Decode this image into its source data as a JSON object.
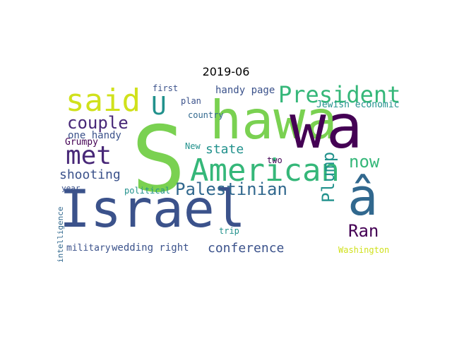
{
  "title": "2019-06",
  "words": [
    {
      "text": "Israel",
      "color": "#3b528b"
    },
    {
      "text": "S",
      "color": "#7ad151"
    },
    {
      "text": "hawa",
      "color": "#7ad151"
    },
    {
      "text": "wa",
      "color": "#440154"
    },
    {
      "text": "â",
      "color": "#31688e"
    },
    {
      "text": "American",
      "color": "#35b779"
    },
    {
      "text": "said",
      "color": "#d0e11c"
    },
    {
      "text": "President",
      "color": "#35b779"
    },
    {
      "text": "met",
      "color": "#482878"
    },
    {
      "text": "Palestinian",
      "color": "#31688e"
    },
    {
      "text": "U",
      "color": "#21918c"
    },
    {
      "text": "couple",
      "color": "#482878"
    },
    {
      "text": "shooting",
      "color": "#3b528b"
    },
    {
      "text": "now",
      "color": "#35b779"
    },
    {
      "text": "Plump",
      "color": "#21918c"
    },
    {
      "text": "Ran",
      "color": "#440154"
    },
    {
      "text": "conference",
      "color": "#3b528b"
    },
    {
      "text": "state",
      "color": "#21918c"
    },
    {
      "text": "handy page",
      "color": "#3b528b"
    },
    {
      "text": "Jewish economic",
      "color": "#21918c"
    },
    {
      "text": "one handy",
      "color": "#3b528b"
    },
    {
      "text": "Grumpy",
      "color": "#440154"
    },
    {
      "text": "wedding right",
      "color": "#3b528b"
    },
    {
      "text": "military",
      "color": "#3b528b"
    },
    {
      "text": "Washington",
      "color": "#d0e11c"
    },
    {
      "text": "political",
      "color": "#21918c"
    },
    {
      "text": "country",
      "color": "#31688e"
    },
    {
      "text": "first",
      "color": "#3b528b"
    },
    {
      "text": "plan",
      "color": "#3b528b"
    },
    {
      "text": "New",
      "color": "#21918c"
    },
    {
      "text": "two",
      "color": "#440154"
    },
    {
      "text": "trip",
      "color": "#21918c"
    },
    {
      "text": "year",
      "color": "#3b528b"
    },
    {
      "text": "intelligence",
      "color": "#31688e"
    }
  ]
}
